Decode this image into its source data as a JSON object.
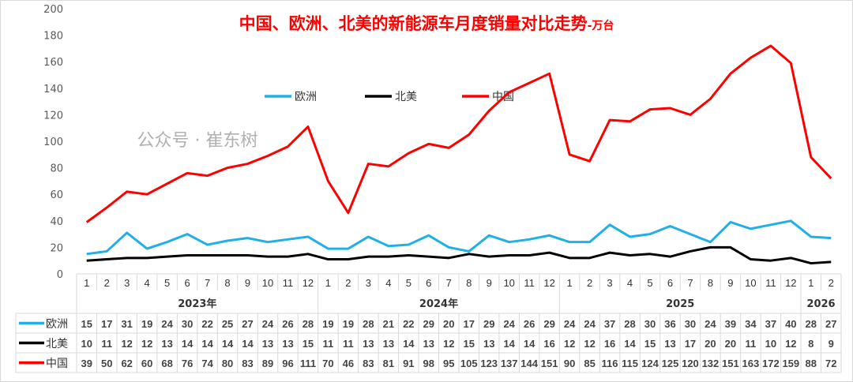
{
  "chart_data": {
    "type": "line",
    "title": "中国、欧洲、北美的新能源车月度销量对比走势",
    "title_unit": "-万台",
    "ylim": [
      0,
      200
    ],
    "yticks": [
      0,
      20,
      40,
      60,
      80,
      100,
      120,
      140,
      160,
      180,
      200
    ],
    "grid": false,
    "legend_placement": "top-center",
    "months": [
      "1",
      "2",
      "3",
      "4",
      "5",
      "6",
      "7",
      "8",
      "9",
      "10",
      "11",
      "12",
      "1",
      "2",
      "3",
      "4",
      "5",
      "6",
      "7",
      "8",
      "9",
      "10",
      "11",
      "12",
      "1",
      "2",
      "3",
      "4",
      "5",
      "6",
      "7",
      "8",
      "9",
      "10",
      "11",
      "12",
      "1",
      "2"
    ],
    "years": [
      {
        "label": "2023年",
        "count": 12
      },
      {
        "label": "2024年",
        "count": 12
      },
      {
        "label": "2025",
        "count": 12
      },
      {
        "label": "2026",
        "count": 2
      }
    ],
    "series": [
      {
        "name": "欧洲",
        "color": "#1fb0ea",
        "values": [
          15,
          17,
          31,
          19,
          24,
          30,
          22,
          25,
          27,
          24,
          26,
          28,
          19,
          19,
          28,
          21,
          22,
          29,
          20,
          17,
          29,
          24,
          26,
          29,
          24,
          24,
          37,
          28,
          30,
          36,
          30,
          24,
          39,
          34,
          37,
          40,
          28,
          27
        ]
      },
      {
        "name": "北美",
        "color": "#000000",
        "values": [
          10,
          11,
          12,
          12,
          13,
          14,
          14,
          14,
          14,
          13,
          13,
          15,
          11,
          11,
          13,
          13,
          14,
          13,
          12,
          15,
          13,
          14,
          14,
          16,
          12,
          12,
          16,
          14,
          15,
          13,
          17,
          20,
          20,
          11,
          10,
          12,
          8,
          9
        ]
      },
      {
        "name": "中国",
        "color": "#ff0000",
        "values": [
          39,
          50,
          62,
          60,
          68,
          76,
          74,
          80,
          83,
          89,
          96,
          111,
          70,
          46,
          83,
          81,
          91,
          98,
          95,
          105,
          123,
          137,
          144,
          151,
          90,
          85,
          116,
          115,
          124,
          125,
          120,
          132,
          151,
          163,
          172,
          159,
          88,
          72
        ]
      }
    ]
  },
  "watermark": "公众号 · 崔东树"
}
